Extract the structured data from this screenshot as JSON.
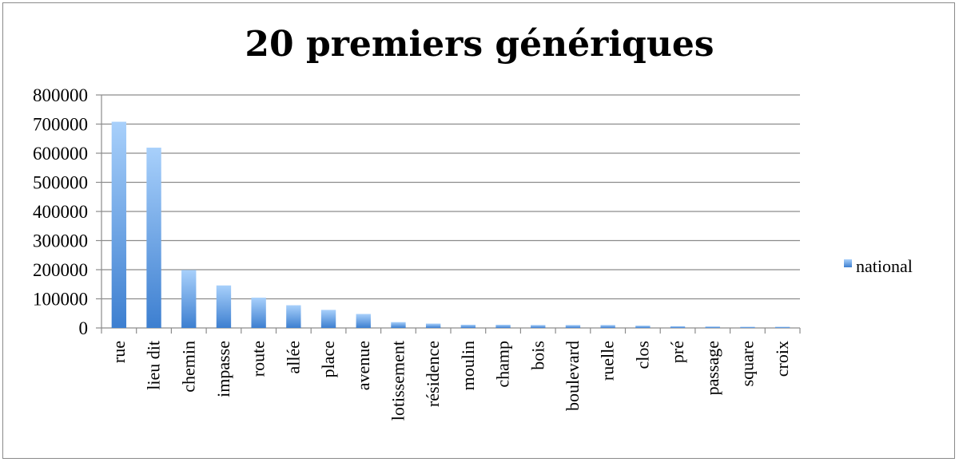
{
  "chart_data": {
    "type": "bar",
    "title": "20 premiers génériques",
    "xlabel": "",
    "ylabel": "",
    "ylim": [
      0,
      800000
    ],
    "yticks": [
      0,
      100000,
      200000,
      300000,
      400000,
      500000,
      600000,
      700000,
      800000
    ],
    "grid": true,
    "legend_position": "right",
    "categories": [
      "rue",
      "lieu dit",
      "chemin",
      "impasse",
      "route",
      "allée",
      "place",
      "avenue",
      "lotissement",
      "résidence",
      "moulin",
      "champ",
      "bois",
      "boulevard",
      "ruelle",
      "clos",
      "pré",
      "passage",
      "square",
      "croix"
    ],
    "series": [
      {
        "name": "national",
        "color": "#4a90d9",
        "values": [
          708000,
          619000,
          199000,
          146000,
          104000,
          78000,
          62000,
          48000,
          20000,
          15000,
          11000,
          11000,
          10000,
          10000,
          10000,
          8000,
          6000,
          5000,
          4000,
          4000
        ]
      }
    ]
  }
}
